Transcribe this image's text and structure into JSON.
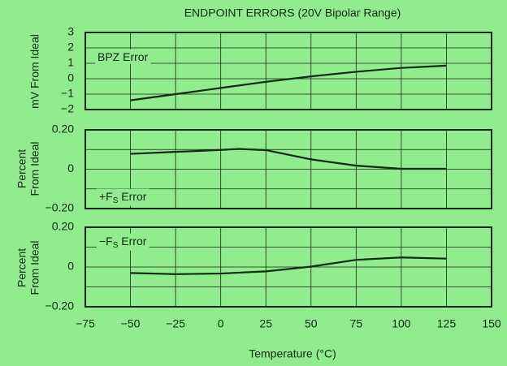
{
  "chart_data": [
    {
      "type": "line",
      "title": "ENDPOINT ERRORS (20V Bipolar Range)",
      "ylabel": [
        "mV From Ideal"
      ],
      "annotation": {
        "text": "BPZ Error"
      },
      "x": [
        -50,
        -25,
        0,
        25,
        50,
        75,
        100,
        125
      ],
      "series": [
        {
          "color": "#0f2a0f",
          "values": [
            -1.4,
            -1.0,
            -0.6,
            -0.2,
            0.15,
            0.45,
            0.7,
            0.85
          ]
        }
      ],
      "xlim": [
        -75,
        150
      ],
      "xticks": [
        -75,
        -50,
        -25,
        0,
        25,
        50,
        75,
        100,
        125,
        150
      ],
      "ylim": [
        -2,
        3
      ],
      "yticks": [
        {
          "value": -2,
          "label": "−2"
        },
        {
          "value": -1,
          "label": "−1"
        },
        0,
        1,
        2,
        3
      ],
      "grid_lines": [
        -2,
        -1,
        0,
        1,
        2,
        3
      ],
      "grid": true
    },
    {
      "type": "line",
      "ylabel": [
        "Percent",
        "From Ideal"
      ],
      "annotation": {
        "text": "+F",
        "sub": "S",
        "suffix": " Error"
      },
      "x": [
        -50,
        -25,
        0,
        10,
        25,
        50,
        75,
        100,
        125
      ],
      "series": [
        {
          "color": "#0f2a0f",
          "values": [
            0.078,
            0.088,
            0.098,
            0.103,
            0.097,
            0.05,
            0.018,
            0.002,
            0.002
          ]
        }
      ],
      "xlim": [
        -75,
        150
      ],
      "xticks": [
        -75,
        -50,
        -25,
        0,
        25,
        50,
        75,
        100,
        125,
        150
      ],
      "ylim": [
        -0.2,
        0.2
      ],
      "yticks": [
        {
          "value": -0.2,
          "label": "−0.20"
        },
        0,
        {
          "value": 0.2,
          "label": "0.20"
        }
      ],
      "grid_lines": [
        -0.2,
        -0.1,
        0,
        0.1,
        0.2
      ],
      "grid": true
    },
    {
      "type": "line",
      "ylabel": [
        "Percent",
        "From Ideal"
      ],
      "xlabel": "Temperature (°C)",
      "annotation": {
        "text": "−F",
        "sub": "S",
        "suffix": " Error"
      },
      "x": [
        -50,
        -25,
        0,
        25,
        50,
        75,
        100,
        125
      ],
      "series": [
        {
          "color": "#0f2a0f",
          "values": [
            -0.03,
            -0.036,
            -0.033,
            -0.022,
            0.002,
            0.036,
            0.048,
            0.042
          ]
        }
      ],
      "xlim": [
        -75,
        150
      ],
      "xticks": [
        {
          "value": -75,
          "label": "−75"
        },
        {
          "value": -50,
          "label": "−50"
        },
        {
          "value": -25,
          "label": "−25"
        },
        0,
        25,
        50,
        75,
        100,
        125,
        150
      ],
      "show_xtick_labels": true,
      "ylim": [
        -0.2,
        0.2
      ],
      "yticks": [
        {
          "value": -0.2,
          "label": "−0.20"
        },
        0,
        {
          "value": 0.2,
          "label": "0.20"
        }
      ],
      "grid_lines": [
        -0.2,
        -0.1,
        0,
        0.1,
        0.2
      ],
      "grid": true
    }
  ]
}
